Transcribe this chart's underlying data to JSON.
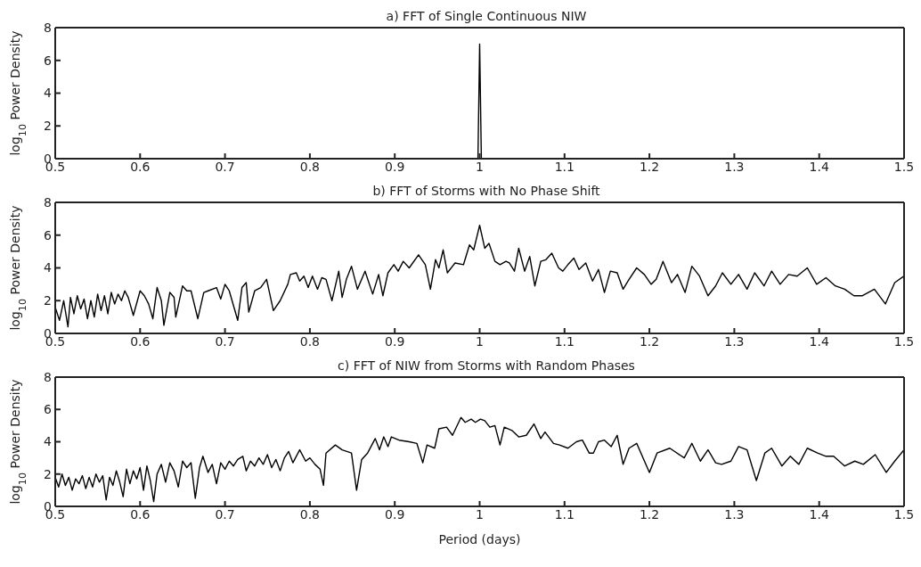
{
  "chart_data": [
    {
      "type": "line",
      "title": "a) FFT of Single Continuous NIW",
      "ylabel": "log$_{10}$ Power Density",
      "color": "#000000",
      "x": [
        0.998,
        1,
        1.002
      ],
      "values": [
        0,
        7,
        0
      ],
      "xlim": [
        0.5,
        1.5
      ],
      "xticks": [
        0.5,
        0.6,
        0.7,
        0.8,
        0.9,
        1,
        1.1,
        1.2,
        1.3,
        1.4,
        1.5
      ],
      "ylim": [
        0,
        8
      ],
      "yticks": [
        0,
        2,
        4,
        6,
        8
      ]
    },
    {
      "type": "line",
      "title": "b) FFT of Storms with No Phase Shift",
      "ylabel": "log$_{10}$ Power Density",
      "color": "#000000",
      "x": [
        0.5,
        0.505,
        0.51,
        0.515,
        0.518,
        0.522,
        0.526,
        0.53,
        0.534,
        0.538,
        0.542,
        0.546,
        0.55,
        0.554,
        0.558,
        0.562,
        0.566,
        0.57,
        0.574,
        0.578,
        0.582,
        0.586,
        0.592,
        0.6,
        0.605,
        0.61,
        0.615,
        0.62,
        0.625,
        0.628,
        0.635,
        0.64,
        0.642,
        0.65,
        0.655,
        0.66,
        0.668,
        0.675,
        0.68,
        0.69,
        0.695,
        0.7,
        0.705,
        0.715,
        0.72,
        0.725,
        0.728,
        0.735,
        0.742,
        0.749,
        0.757,
        0.765,
        0.774,
        0.777,
        0.784,
        0.788,
        0.793,
        0.798,
        0.803,
        0.809,
        0.814,
        0.819,
        0.826,
        0.834,
        0.838,
        0.843,
        0.849,
        0.856,
        0.865,
        0.874,
        0.881,
        0.886,
        0.892,
        0.899,
        0.904,
        0.91,
        0.917,
        0.928,
        0.936,
        0.942,
        0.948,
        0.952,
        0.957,
        0.962,
        0.971,
        0.981,
        0.988,
        0.993,
        1,
        1.006,
        1.011,
        1.018,
        1.024,
        1.031,
        1.035,
        1.041,
        1.046,
        1.053,
        1.059,
        1.065,
        1.072,
        1.078,
        1.085,
        1.093,
        1.098,
        1.104,
        1.111,
        1.117,
        1.125,
        1.133,
        1.14,
        1.147,
        1.154,
        1.162,
        1.169,
        1.176,
        1.185,
        1.194,
        1.202,
        1.208,
        1.216,
        1.226,
        1.233,
        1.242,
        1.25,
        1.259,
        1.269,
        1.278,
        1.286,
        1.296,
        1.305,
        1.315,
        1.324,
        1.335,
        1.344,
        1.354,
        1.364,
        1.374,
        1.386,
        1.397,
        1.408,
        1.419,
        1.43,
        1.441,
        1.451,
        1.465,
        1.478,
        1.489,
        1.5
      ],
      "values": [
        1.6,
        0.8,
        2.0,
        0.4,
        2.2,
        1.2,
        2.3,
        1.5,
        2.1,
        0.9,
        2.0,
        1.0,
        2.4,
        1.4,
        2.3,
        1.2,
        2.5,
        1.8,
        2.4,
        2.0,
        2.6,
        2.2,
        1.1,
        2.6,
        2.3,
        1.8,
        0.9,
        2.8,
        2.0,
        0.5,
        2.5,
        2.2,
        1.0,
        2.9,
        2.6,
        2.6,
        0.9,
        2.5,
        2.6,
        2.8,
        2.1,
        3.0,
        2.6,
        0.8,
        2.8,
        3.1,
        1.3,
        2.6,
        2.8,
        3.3,
        1.4,
        2.0,
        3.0,
        3.6,
        3.7,
        3.2,
        3.5,
        2.8,
        3.5,
        2.7,
        3.4,
        3.3,
        2.0,
        3.8,
        2.2,
        3.3,
        4.1,
        2.7,
        3.8,
        2.4,
        3.6,
        2.3,
        3.7,
        4.2,
        3.8,
        4.4,
        4.0,
        4.8,
        4.2,
        2.7,
        4.5,
        4.0,
        5.1,
        3.7,
        4.3,
        4.2,
        5.4,
        5.1,
        6.6,
        5.2,
        5.5,
        4.4,
        4.2,
        4.4,
        4.3,
        3.8,
        5.2,
        3.8,
        4.7,
        2.9,
        4.4,
        4.5,
        4.9,
        4.0,
        3.8,
        4.2,
        4.6,
        3.9,
        4.3,
        3.2,
        3.9,
        2.5,
        3.8,
        3.7,
        2.7,
        3.3,
        4.0,
        3.6,
        3.0,
        3.3,
        4.4,
        3.1,
        3.6,
        2.5,
        4.1,
        3.5,
        2.3,
        2.9,
        3.7,
        3.0,
        3.6,
        2.7,
        3.7,
        2.9,
        3.8,
        3.0,
        3.6,
        3.5,
        4.0,
        3.0,
        3.4,
        2.9,
        2.7,
        2.3,
        2.3,
        2.7,
        1.8,
        3.1,
        3.5
      ],
      "xlim": [
        0.5,
        1.5
      ],
      "xticks": [
        0.5,
        0.6,
        0.7,
        0.8,
        0.9,
        1,
        1.1,
        1.2,
        1.3,
        1.4,
        1.5
      ],
      "ylim": [
        0,
        8
      ],
      "yticks": [
        0,
        2,
        4,
        6,
        8
      ]
    },
    {
      "type": "line",
      "title": "c) FFT of NIW from Storms with Random Phases",
      "ylabel": "log$_{10}$ Power Density",
      "xlabel": "Period (days)",
      "color": "#000000",
      "x": [
        0.5,
        0.504,
        0.508,
        0.512,
        0.516,
        0.52,
        0.524,
        0.528,
        0.532,
        0.536,
        0.54,
        0.544,
        0.548,
        0.552,
        0.556,
        0.56,
        0.564,
        0.568,
        0.572,
        0.576,
        0.58,
        0.584,
        0.588,
        0.592,
        0.596,
        0.6,
        0.604,
        0.608,
        0.612,
        0.616,
        0.62,
        0.625,
        0.63,
        0.635,
        0.64,
        0.645,
        0.65,
        0.655,
        0.66,
        0.665,
        0.67,
        0.674,
        0.68,
        0.685,
        0.69,
        0.695,
        0.7,
        0.705,
        0.71,
        0.715,
        0.721,
        0.725,
        0.73,
        0.735,
        0.74,
        0.745,
        0.75,
        0.755,
        0.76,
        0.765,
        0.77,
        0.775,
        0.78,
        0.788,
        0.795,
        0.8,
        0.806,
        0.812,
        0.816,
        0.819,
        0.83,
        0.838,
        0.849,
        0.855,
        0.861,
        0.868,
        0.877,
        0.882,
        0.887,
        0.892,
        0.896,
        0.905,
        0.917,
        0.926,
        0.933,
        0.938,
        0.947,
        0.952,
        0.961,
        0.968,
        0.978,
        0.983,
        0.99,
        0.995,
        1.001,
        1.006,
        1.012,
        1.018,
        1.024,
        1.029,
        1.038,
        1.046,
        1.055,
        1.064,
        1.072,
        1.077,
        1.087,
        1.094,
        1.104,
        1.114,
        1.121,
        1.129,
        1.134,
        1.14,
        1.147,
        1.155,
        1.162,
        1.169,
        1.176,
        1.185,
        1.2,
        1.209,
        1.224,
        1.241,
        1.25,
        1.26,
        1.269,
        1.278,
        1.285,
        1.296,
        1.305,
        1.315,
        1.326,
        1.336,
        1.344,
        1.356,
        1.366,
        1.376,
        1.386,
        1.398,
        1.408,
        1.417,
        1.43,
        1.442,
        1.452,
        1.466,
        1.479,
        1.489,
        1.5
      ],
      "values": [
        1.8,
        1.2,
        2.0,
        1.3,
        1.8,
        1.0,
        1.7,
        1.4,
        1.9,
        1.1,
        1.8,
        1.2,
        2.0,
        1.5,
        1.9,
        0.4,
        1.8,
        1.3,
        2.2,
        1.5,
        0.6,
        2.3,
        1.4,
        2.2,
        1.7,
        2.4,
        1.0,
        2.5,
        1.6,
        0.3,
        2.0,
        2.6,
        1.5,
        2.7,
        2.2,
        1.2,
        2.8,
        2.4,
        2.7,
        0.5,
        2.4,
        3.1,
        2.1,
        2.6,
        1.4,
        2.7,
        2.3,
        2.8,
        2.5,
        2.9,
        3.1,
        2.2,
        2.8,
        2.5,
        3.0,
        2.6,
        3.2,
        2.4,
        2.9,
        2.2,
        3.0,
        3.4,
        2.7,
        3.5,
        2.8,
        3.0,
        2.6,
        2.3,
        1.3,
        3.3,
        3.8,
        3.5,
        3.3,
        1.0,
        2.9,
        3.3,
        4.2,
        3.5,
        4.3,
        3.7,
        4.3,
        4.1,
        4.0,
        3.9,
        2.7,
        3.8,
        3.6,
        4.8,
        4.9,
        4.4,
        5.5,
        5.2,
        5.4,
        5.2,
        5.4,
        5.3,
        4.9,
        5.0,
        3.8,
        4.9,
        4.7,
        4.3,
        4.4,
        5.1,
        4.2,
        4.6,
        3.9,
        3.8,
        3.6,
        4.0,
        4.1,
        3.3,
        3.3,
        4.0,
        4.1,
        3.7,
        4.4,
        2.6,
        3.6,
        3.9,
        2.1,
        3.3,
        3.6,
        3.0,
        3.9,
        2.8,
        3.5,
        2.7,
        2.6,
        2.8,
        3.7,
        3.5,
        1.6,
        3.3,
        3.6,
        2.5,
        3.1,
        2.6,
        3.6,
        3.3,
        3.1,
        3.1,
        2.5,
        2.8,
        2.6,
        3.2,
        2.1,
        2.8,
        3.5
      ],
      "xlim": [
        0.5,
        1.5
      ],
      "xticks": [
        0.5,
        0.6,
        0.7,
        0.8,
        0.9,
        1,
        1.1,
        1.2,
        1.3,
        1.4,
        1.5
      ],
      "ylim": [
        0,
        8
      ],
      "yticks": [
        0,
        2,
        4,
        6,
        8
      ]
    }
  ]
}
